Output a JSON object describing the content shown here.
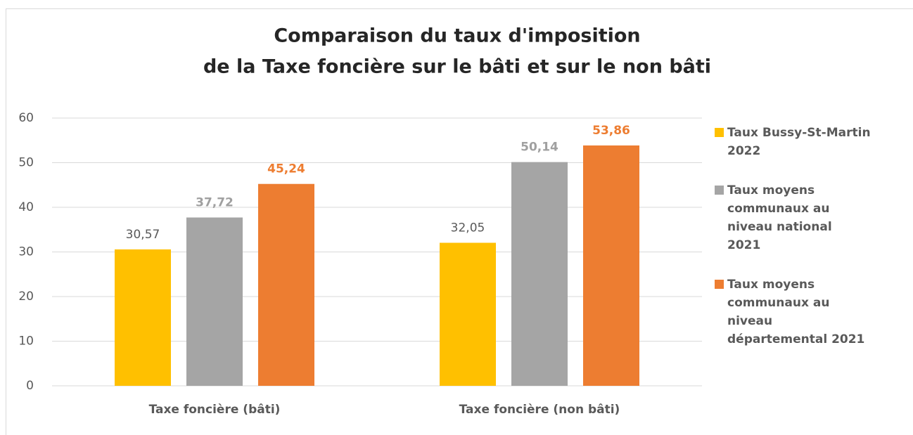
{
  "chart_data": {
    "type": "bar",
    "title": [
      "Comparaison du taux d'imposition",
      "de la Taxe foncière sur le bâti et sur le non bâti"
    ],
    "categories": [
      "Taxe foncière (bâti)",
      "Taxe foncière (non bâti)"
    ],
    "series": [
      {
        "name": "Taux Bussy-St-Martin 2022",
        "color": "#ffc000",
        "label_color": "#595959",
        "values": [
          30.57,
          32.05
        ],
        "value_labels": [
          "30,57",
          "32,05"
        ]
      },
      {
        "name": "Taux moyens communaux au niveau national 2021",
        "color": "#a5a5a5",
        "label_color": "#a0a0a0",
        "values": [
          37.72,
          50.14
        ],
        "value_labels": [
          "37,72",
          "50,14"
        ]
      },
      {
        "name": "Taux moyens communaux au niveau départemental 2021",
        "color": "#ed7d31",
        "label_color": "#ed7d31",
        "values": [
          45.24,
          53.86
        ],
        "value_labels": [
          "45,24",
          "53,86"
        ]
      }
    ],
    "ylim": [
      0,
      60
    ],
    "yticks": [
      0,
      10,
      20,
      30,
      40,
      50,
      60
    ],
    "grid": true,
    "legend": "right"
  }
}
